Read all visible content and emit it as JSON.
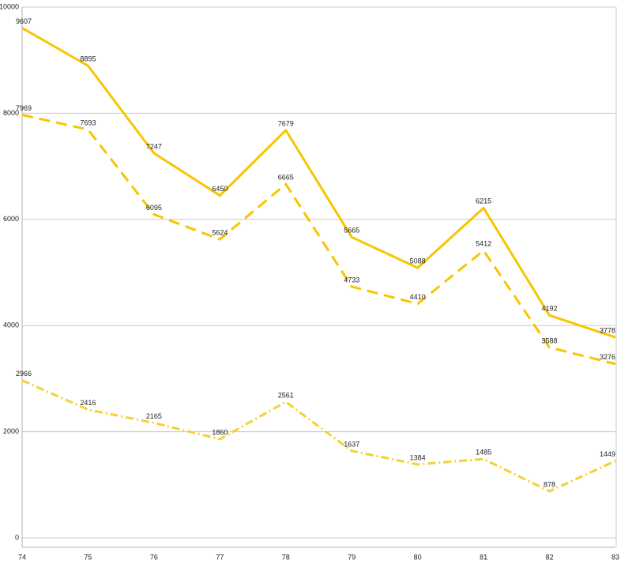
{
  "chart_data": {
    "type": "line",
    "categories": [
      "74",
      "75",
      "76",
      "77",
      "78",
      "79",
      "80",
      "81",
      "82",
      "83"
    ],
    "series": [
      {
        "color": "#f7c600",
        "dash": "solid",
        "values": [
          9607,
          8895,
          7247,
          6450,
          7679,
          5665,
          5088,
          6215,
          4192,
          3778
        ]
      },
      {
        "color": "#f7c600",
        "dash": "dashed",
        "values": [
          7969,
          7693,
          6095,
          5624,
          6665,
          4733,
          4410,
          5412,
          3588,
          3276
        ]
      },
      {
        "color": "#f5d132",
        "dash": "dashdot",
        "values": [
          2966,
          2416,
          2165,
          1860,
          2561,
          1637,
          1384,
          1485,
          878,
          1449
        ]
      }
    ],
    "ylim": [
      0,
      10000
    ],
    "yticks": [
      0,
      2000,
      4000,
      6000,
      8000,
      10000
    ],
    "grid": true
  }
}
